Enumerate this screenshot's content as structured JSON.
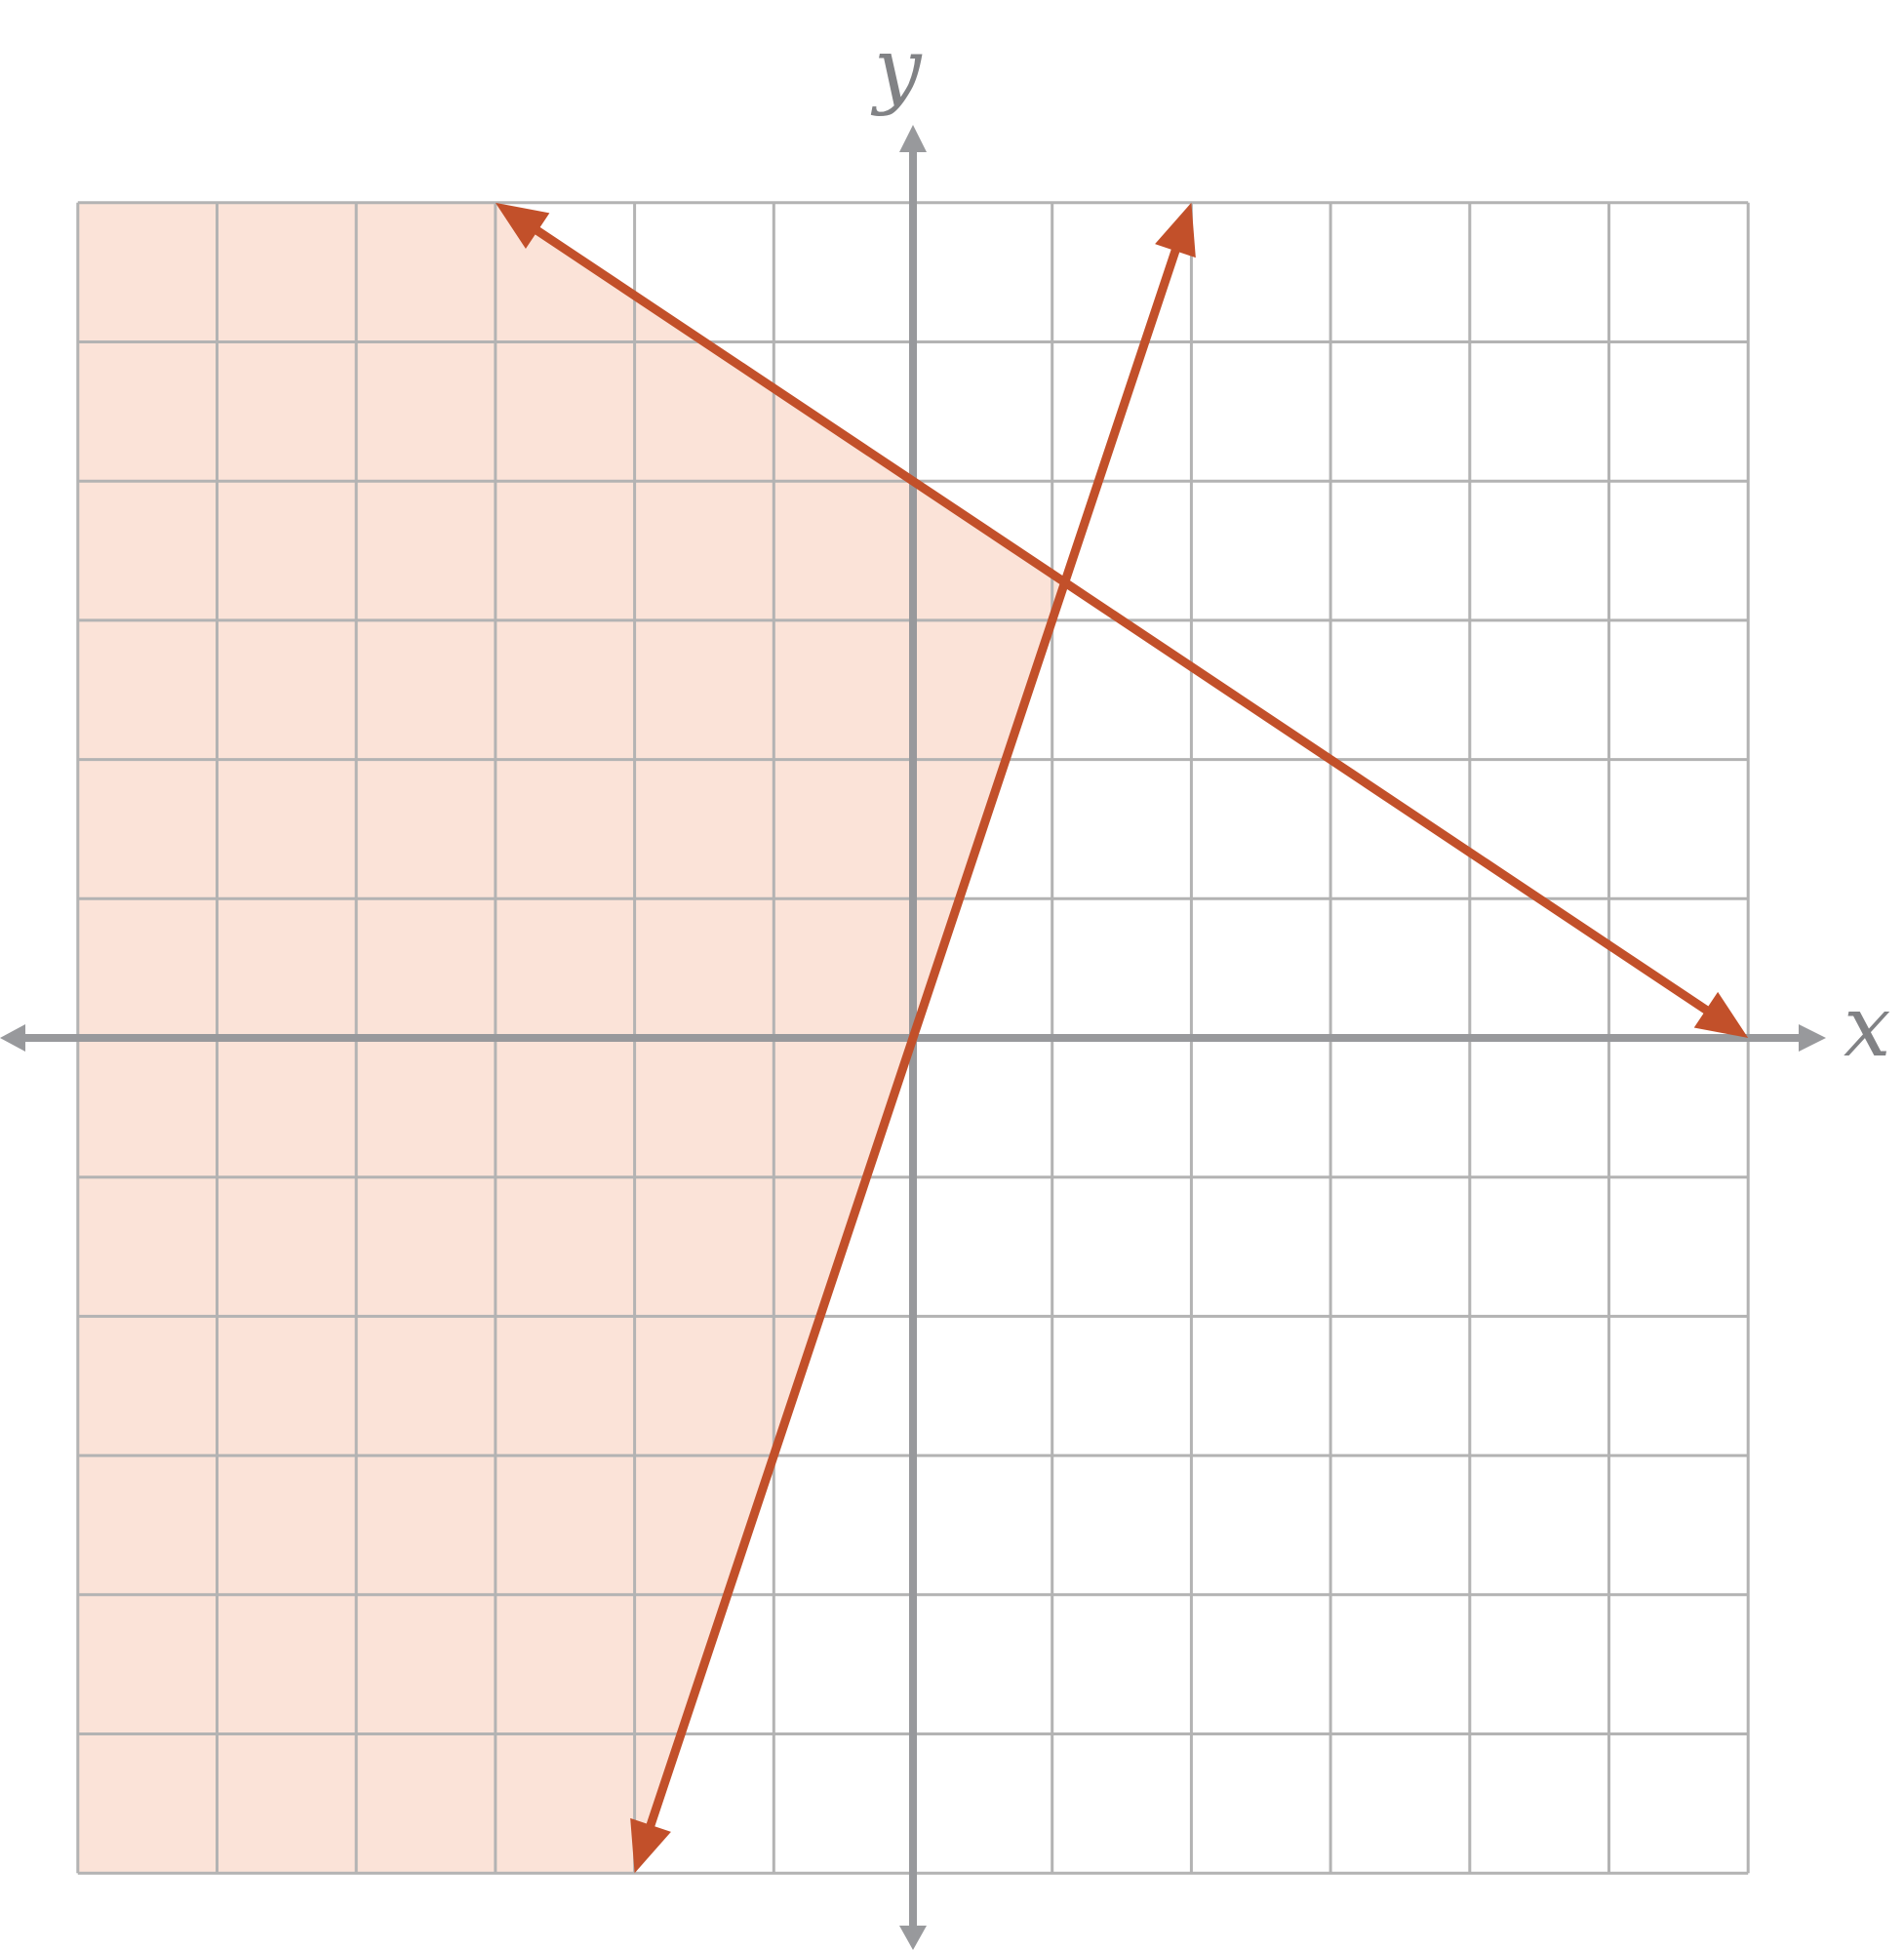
{
  "chart_data": {
    "type": "line",
    "title": "",
    "xlabel": "x",
    "ylabel": "y",
    "xlim": [
      -6,
      6
    ],
    "ylim": [
      -6,
      6
    ],
    "grid": true,
    "series": [
      {
        "points": [
          [
            -3,
            6
          ],
          [
            6,
            0
          ]
        ]
      },
      {
        "points": [
          [
            -2,
            -6
          ],
          [
            2,
            6
          ]
        ]
      }
    ],
    "shaded_region": {
      "description_points": [
        [
          -6,
          6
        ],
        [
          -3,
          6
        ],
        [
          1.0909,
          3.2727
        ],
        [
          -2,
          -6
        ],
        [
          -6,
          -6
        ]
      ]
    },
    "colors": {
      "line": "#c2502a",
      "shade": "#fbe3d8",
      "grid": "#b3b3b3",
      "axis": "#98999c",
      "label": "#818285"
    }
  }
}
